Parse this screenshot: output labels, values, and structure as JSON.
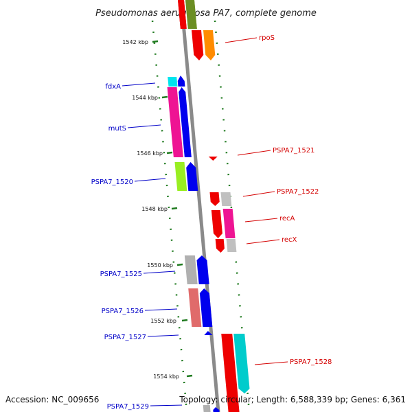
{
  "title": "Pseudomonas aeruginosa PA7, complete genome",
  "footer": {
    "accession": "Accession: NC_009656",
    "topology": "Topology: circular; Length: 6,588,339 bp; Genes: 6,361"
  },
  "colors": {
    "backbone": "#8a8a8a",
    "tick": "#1f7a1f",
    "label_left": "#0000c8",
    "label_right": "#d40000"
  },
  "kbp_labels": [
    "1542 kbp",
    "1544 kbp",
    "1546 kbp",
    "1548 kbp",
    "1550 kbp",
    "1552 kbp",
    "1554 kbp"
  ],
  "gene_labels_left": [
    "fdxA",
    "mutS",
    "PSPA7_1520",
    "PSPA7_1525",
    "PSPA7_1526",
    "PSPA7_1527",
    "PSPA7_1529"
  ],
  "gene_labels_right": [
    "rpoS",
    "PSPA7_1521",
    "PSPA7_1522",
    "recA",
    "recX",
    "PSPA7_1528"
  ]
}
